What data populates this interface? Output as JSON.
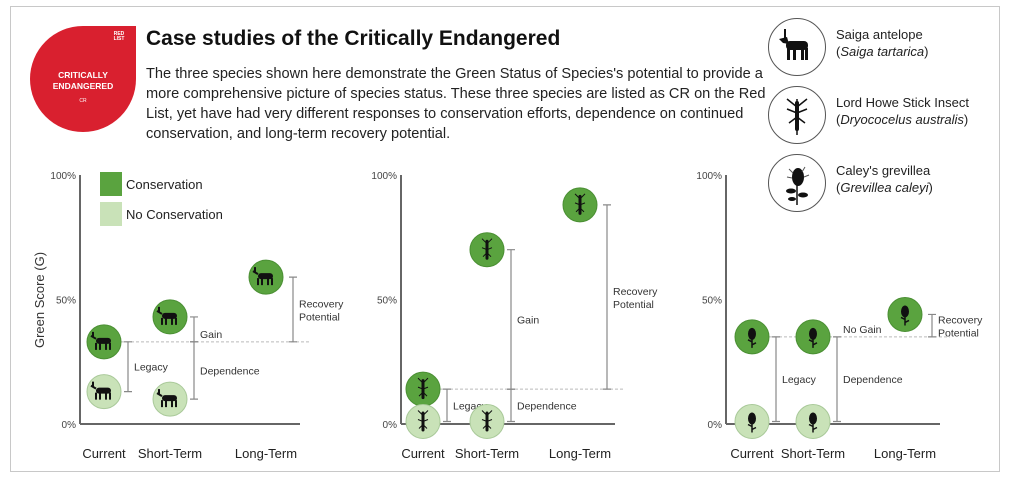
{
  "badge": {
    "line1": "CRITICALLY",
    "line2": "ENDANGERED",
    "code": "CR",
    "logo": "RED LIST"
  },
  "header": {
    "title": "Case studies of the Critically Endangered",
    "description": "The three species shown here demonstrate the Green Status of Species's potential to provide a more comprehensive picture of species status. These three species are listed as CR on the Red List, yet have had very different responses to conservation efforts, dependence on continued conservation, and long-term recovery potential."
  },
  "species": [
    {
      "icon": "antelope-icon",
      "common": "Saiga antelope",
      "scientific": "Saiga tartarica"
    },
    {
      "icon": "stick-insect-icon",
      "common": "Lord Howe Stick Insect",
      "scientific": "Dryococelus australis"
    },
    {
      "icon": "grevillea-icon",
      "common": "Caley's grevillea",
      "scientific": "Grevillea caleyi"
    }
  ],
  "colors": {
    "conservation": "#5aa33f",
    "no_conservation": "#c9e2b8",
    "badge": "#d9202f"
  },
  "chart_data": [
    {
      "type": "scatter",
      "species": "Saiga antelope",
      "icon": "antelope",
      "ylabel": "Green Score (G)",
      "ylim": [
        0,
        100
      ],
      "yticks": [
        "0%",
        "50%",
        "100%"
      ],
      "categories": [
        "Current",
        "Short-Term",
        "Long-Term"
      ],
      "legend": [
        "Conservation",
        "No Conservation"
      ],
      "series": [
        {
          "name": "Conservation",
          "values": [
            33,
            43,
            59
          ]
        },
        {
          "name": "No Conservation",
          "values": [
            13,
            10,
            null
          ]
        }
      ],
      "annotations": [
        {
          "label": "Legacy",
          "cat": 0,
          "from": 13,
          "to": 33
        },
        {
          "label": "Gain",
          "cat": 1,
          "from": 33,
          "to": 43
        },
        {
          "label": "Dependence",
          "cat": 1,
          "from": 10,
          "to": 33
        },
        {
          "label": "Recovery Potential",
          "cat": 2,
          "from": 33,
          "to": 59
        }
      ]
    },
    {
      "type": "scatter",
      "species": "Lord Howe Stick Insect",
      "icon": "insect",
      "ylim": [
        0,
        100
      ],
      "yticks": [
        "0%",
        "50%",
        "100%"
      ],
      "categories": [
        "Current",
        "Short-Term",
        "Long-Term"
      ],
      "series": [
        {
          "name": "Conservation",
          "values": [
            14,
            70,
            88
          ]
        },
        {
          "name": "No Conservation",
          "values": [
            1,
            1,
            null
          ]
        }
      ],
      "annotations": [
        {
          "label": "Legacy",
          "cat": 0,
          "from": 1,
          "to": 14
        },
        {
          "label": "Gain",
          "cat": 1,
          "from": 14,
          "to": 70
        },
        {
          "label": "Dependence",
          "cat": 1,
          "from": 1,
          "to": 14
        },
        {
          "label": "Recovery Potential",
          "cat": 2,
          "from": 14,
          "to": 88
        }
      ]
    },
    {
      "type": "scatter",
      "species": "Caley's grevillea",
      "icon": "plant",
      "ylim": [
        0,
        100
      ],
      "yticks": [
        "0%",
        "50%",
        "100%"
      ],
      "categories": [
        "Current",
        "Short-Term",
        "Long-Term"
      ],
      "series": [
        {
          "name": "Conservation",
          "values": [
            35,
            35,
            44
          ]
        },
        {
          "name": "No Conservation",
          "values": [
            1,
            1,
            null
          ]
        }
      ],
      "annotations": [
        {
          "label": "Legacy",
          "cat": 0,
          "from": 1,
          "to": 35
        },
        {
          "label": "No Gain",
          "cat": 1,
          "from": 35,
          "to": 35
        },
        {
          "label": "Dependence",
          "cat": 1,
          "from": 1,
          "to": 35
        },
        {
          "label": "Recovery Potential",
          "cat": 2,
          "from": 35,
          "to": 44
        }
      ]
    }
  ]
}
